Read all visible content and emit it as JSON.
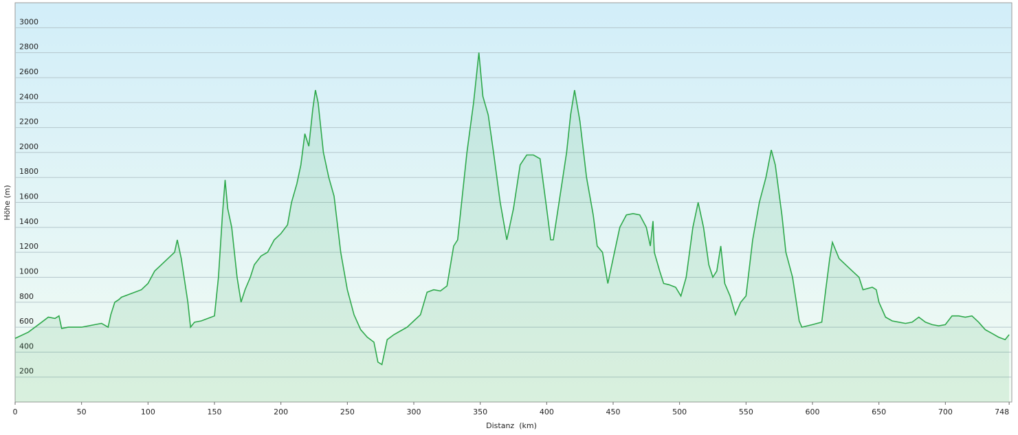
{
  "chart_data": {
    "type": "area",
    "y_label": "Höhe (m)",
    "x_label": "Distanz  (km)",
    "color": "#2da84a",
    "grid": true,
    "xlim": [
      0,
      750
    ],
    "xticks": [
      0,
      50,
      100,
      150,
      200,
      250,
      300,
      350,
      400,
      450,
      500,
      550,
      600,
      650,
      700,
      748
    ],
    "ylim": [
      0,
      3200
    ],
    "yticks": [
      200,
      400,
      600,
      800,
      1000,
      1200,
      1400,
      1600,
      1800,
      2000,
      2200,
      2400,
      2600,
      2800,
      3000
    ],
    "x": [
      0,
      10,
      20,
      25,
      30,
      33,
      35,
      40,
      50,
      60,
      65,
      70,
      72,
      75,
      78,
      80,
      85,
      90,
      95,
      100,
      105,
      110,
      115,
      120,
      122,
      125,
      130,
      132,
      135,
      140,
      145,
      150,
      153,
      156,
      158,
      160,
      163,
      167,
      170,
      173,
      177,
      180,
      185,
      190,
      195,
      200,
      205,
      208,
      212,
      215,
      218,
      221,
      224,
      226,
      228,
      232,
      236,
      240,
      245,
      250,
      255,
      260,
      265,
      270,
      273,
      276,
      280,
      285,
      290,
      295,
      300,
      305,
      310,
      315,
      320,
      325,
      330,
      333,
      337,
      340,
      345,
      349,
      352,
      356,
      360,
      365,
      370,
      375,
      380,
      385,
      390,
      395,
      400,
      403,
      405,
      410,
      415,
      418,
      421,
      425,
      430,
      435,
      438,
      442,
      446,
      450,
      455,
      460,
      465,
      470,
      475,
      478,
      480,
      481,
      485,
      488,
      492,
      497,
      501,
      505,
      510,
      514,
      518,
      522,
      525,
      528,
      531,
      534,
      538,
      542,
      546,
      550,
      555,
      560,
      565,
      569,
      572,
      577,
      580,
      585,
      590,
      592,
      600,
      607,
      610,
      613,
      615,
      620,
      625,
      630,
      635,
      638,
      645,
      648,
      650,
      655,
      660,
      665,
      670,
      675,
      680,
      685,
      690,
      695,
      700,
      705,
      710,
      715,
      720,
      725,
      730,
      735,
      740,
      745,
      748
    ],
    "values": [
      510,
      560,
      640,
      680,
      670,
      690,
      590,
      600,
      600,
      620,
      630,
      600,
      700,
      800,
      820,
      840,
      860,
      880,
      900,
      950,
      1050,
      1100,
      1150,
      1200,
      1300,
      1150,
      800,
      600,
      640,
      650,
      670,
      690,
      1000,
      1500,
      1780,
      1550,
      1400,
      1000,
      800,
      900,
      1000,
      1100,
      1170,
      1200,
      1300,
      1350,
      1420,
      1600,
      1750,
      1900,
      2150,
      2050,
      2350,
      2500,
      2400,
      2000,
      1800,
      1650,
      1200,
      900,
      700,
      580,
      520,
      480,
      320,
      300,
      500,
      540,
      570,
      600,
      650,
      700,
      880,
      900,
      890,
      930,
      1250,
      1300,
      1700,
      2000,
      2400,
      2800,
      2450,
      2300,
      2000,
      1600,
      1300,
      1550,
      1900,
      1980,
      1980,
      1950,
      1550,
      1300,
      1300,
      1650,
      2000,
      2300,
      2500,
      2250,
      1800,
      1500,
      1250,
      1200,
      950,
      1150,
      1400,
      1500,
      1510,
      1500,
      1400,
      1250,
      1450,
      1200,
      1050,
      950,
      940,
      920,
      850,
      1000,
      1400,
      1600,
      1400,
      1100,
      1000,
      1050,
      1250,
      950,
      850,
      700,
      800,
      850,
      1300,
      1600,
      1800,
      2020,
      1900,
      1500,
      1200,
      1000,
      650,
      600,
      620,
      640,
      900,
      1150,
      1280,
      1150,
      1100,
      1050,
      1000,
      900,
      920,
      900,
      800,
      680,
      650,
      640,
      630,
      640,
      680,
      640,
      620,
      610,
      620,
      690,
      690,
      680,
      690,
      640,
      580,
      550,
      520,
      500,
      540
    ]
  }
}
